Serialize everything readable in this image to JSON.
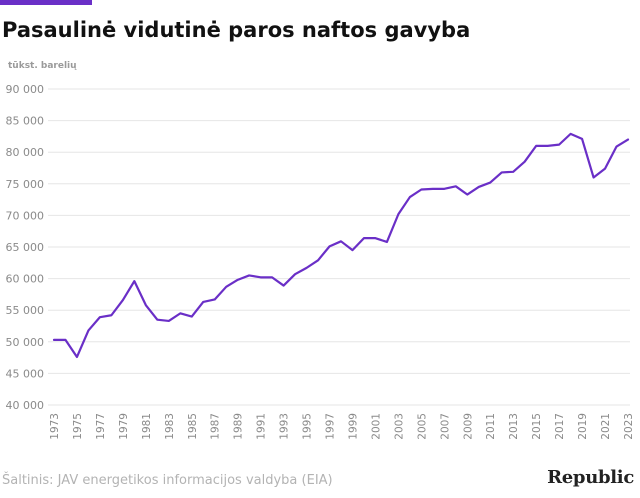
{
  "header": {
    "title": "Pasaulinė vidutinė paros naftos gavyba"
  },
  "colors": {
    "accent": "#6a2fc7",
    "line": "#6a2fc7",
    "grid": "#e6e6e6",
    "tick_text": "#8a8a8a"
  },
  "chart_data": {
    "type": "line",
    "title": "Pasaulinė vidutinė paros naftos gavyba",
    "ylabel": "tūkst. barelių",
    "xlabel": "",
    "ylim": [
      40000,
      90000
    ],
    "grid": true,
    "legend": "none",
    "yticks": [
      "40 000",
      "45 000",
      "50 000",
      "55 000",
      "60 000",
      "65 000",
      "70 000",
      "75 000",
      "80 000",
      "85 000",
      "90 000"
    ],
    "ytick_values": [
      40000,
      45000,
      50000,
      55000,
      60000,
      65000,
      70000,
      75000,
      80000,
      85000,
      90000
    ],
    "xticks": [
      "1973",
      "1975",
      "1977",
      "1979",
      "1981",
      "1983",
      "1985",
      "1987",
      "1989",
      "1991",
      "1993",
      "1995",
      "1997",
      "1999",
      "2001",
      "2003",
      "2005",
      "2007",
      "2009",
      "2011",
      "2013",
      "2015",
      "2017",
      "2019",
      "2021",
      "2023"
    ],
    "x": [
      1973,
      1974,
      1975,
      1976,
      1977,
      1978,
      1979,
      1980,
      1981,
      1982,
      1983,
      1984,
      1985,
      1986,
      1987,
      1988,
      1989,
      1990,
      1991,
      1992,
      1993,
      1994,
      1995,
      1996,
      1997,
      1998,
      1999,
      2000,
      2001,
      2002,
      2003,
      2004,
      2005,
      2006,
      2007,
      2008,
      2009,
      2010,
      2011,
      2012,
      2013,
      2014,
      2015,
      2016,
      2017,
      2018,
      2019,
      2020,
      2021,
      2022,
      2023
    ],
    "series": [
      {
        "values": [
          50300,
          50300,
          47600,
          51800,
          53900,
          54200,
          56600,
          59600,
          55800,
          53500,
          53300,
          54500,
          54000,
          56300,
          56700,
          58700,
          59800,
          60500,
          60200,
          60200,
          58900,
          60700,
          61700,
          62900,
          65100,
          65900,
          64500,
          66400,
          66400,
          65800,
          70200,
          72900,
          74100,
          74200,
          74200,
          74600,
          73300,
          74500,
          75200,
          76800,
          76900,
          78500,
          81000,
          81000,
          81200,
          82900,
          82100,
          76000,
          77400,
          80900,
          82000
        ]
      }
    ]
  },
  "footer": {
    "source": "Šaltinis: JAV energetikos informacijos valdyba (EIA)",
    "logo": "Republic"
  }
}
